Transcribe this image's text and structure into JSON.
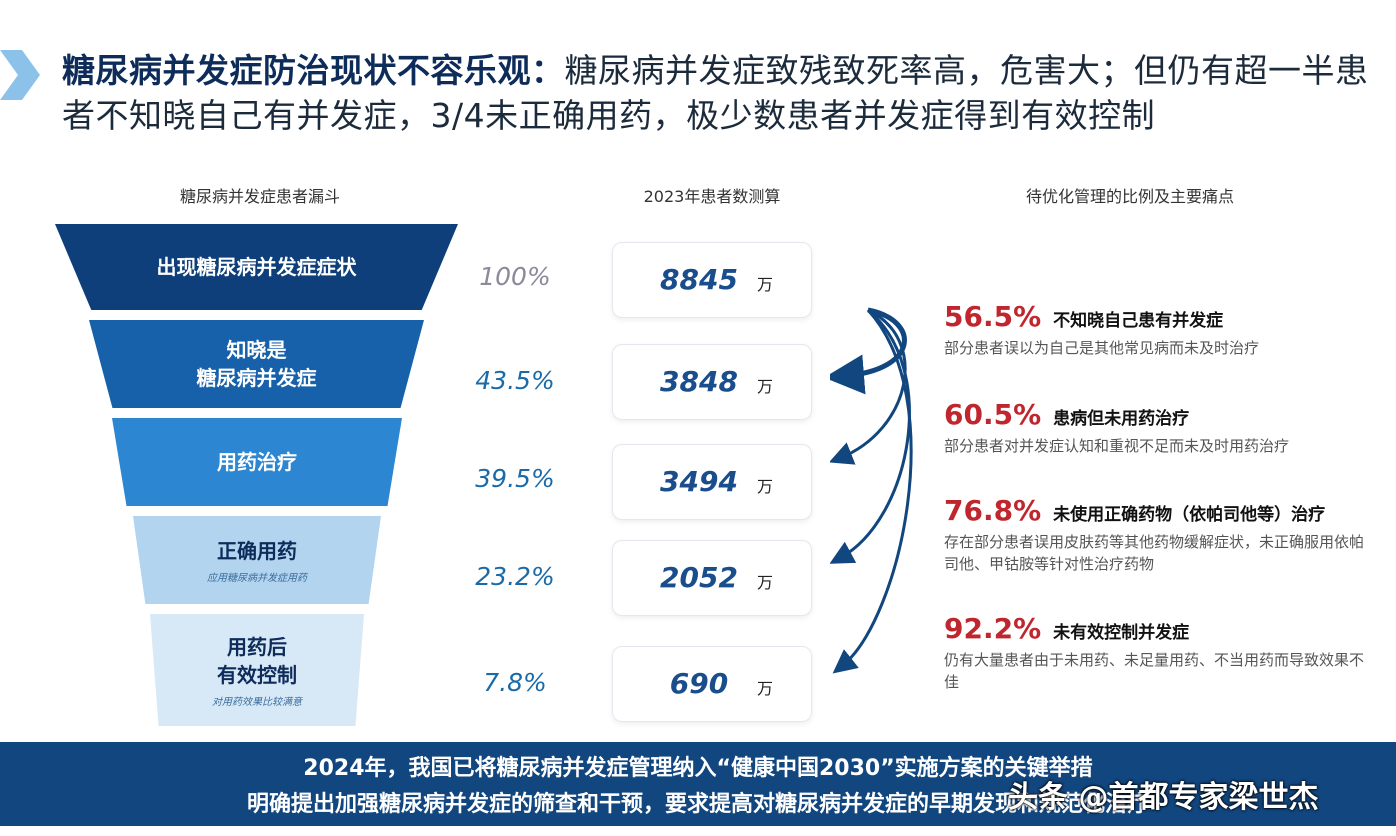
{
  "header": {
    "title_bold": "糖尿病并发症防治现状不容乐观：",
    "title_rest": "糖尿病并发症致残致死率高，危害大；但仍有超一半患者不知晓自己有并发症，3/4未正确用药，极少数患者并发症得到有效控制"
  },
  "columns": {
    "funnel_title": "糖尿病并发症患者漏斗",
    "estimate_title": "2023年患者数测算",
    "pain_title": "待优化管理的比例及主要痛点"
  },
  "funnel": [
    {
      "label": "出现糖尿病并发症症状",
      "sub": "",
      "pct": "100%",
      "count": "8845",
      "unit": "万",
      "color": "#0e3f7a"
    },
    {
      "label": "知晓是\n糖尿病并发症",
      "sub": "",
      "pct": "43.5%",
      "count": "3848",
      "unit": "万",
      "color": "#1761ab"
    },
    {
      "label": "用药治疗",
      "sub": "",
      "pct": "39.5%",
      "count": "3494",
      "unit": "万",
      "color": "#2c86d1"
    },
    {
      "label": "正确用药",
      "sub": "应用糖尿病并发症用药",
      "pct": "23.2%",
      "count": "2052",
      "unit": "万",
      "color": "#b2d4ef"
    },
    {
      "label": "用药后\n有效控制",
      "sub": "对用药效果比较满意",
      "pct": "7.8%",
      "count": "690",
      "unit": "万",
      "color": "#d7e8f6"
    }
  ],
  "pain_points": [
    {
      "pct": "56.5%",
      "title": "不知晓自己患有并发症",
      "desc": "部分患者误以为自己是其他常见病而未及时治疗"
    },
    {
      "pct": "60.5%",
      "title": "患病但未用药治疗",
      "desc": "部分患者对并发症认知和重视不足而未及时用药治疗"
    },
    {
      "pct": "76.8%",
      "title": "未使用正确药物（依帕司他等）治疗",
      "desc": "存在部分患者误用皮肤药等其他药物缓解症状，未正确服用依帕司他、甲钴胺等针对性治疗药物"
    },
    {
      "pct": "92.2%",
      "title": "未有效控制并发症",
      "desc": "仍有大量患者由于未用药、未足量用药、不当用药而导致效果不佳"
    }
  ],
  "banner": {
    "line1": "2024年，我国已将糖尿病并发症管理纳入“健康中国2030”实施方案的关键举措",
    "line2": "明确提出加强糖尿病并发症的筛查和干预，要求提高对糖尿病并发症的早期发现和规范化治疗"
  },
  "watermark": "头条 @首都专家梁世杰"
}
